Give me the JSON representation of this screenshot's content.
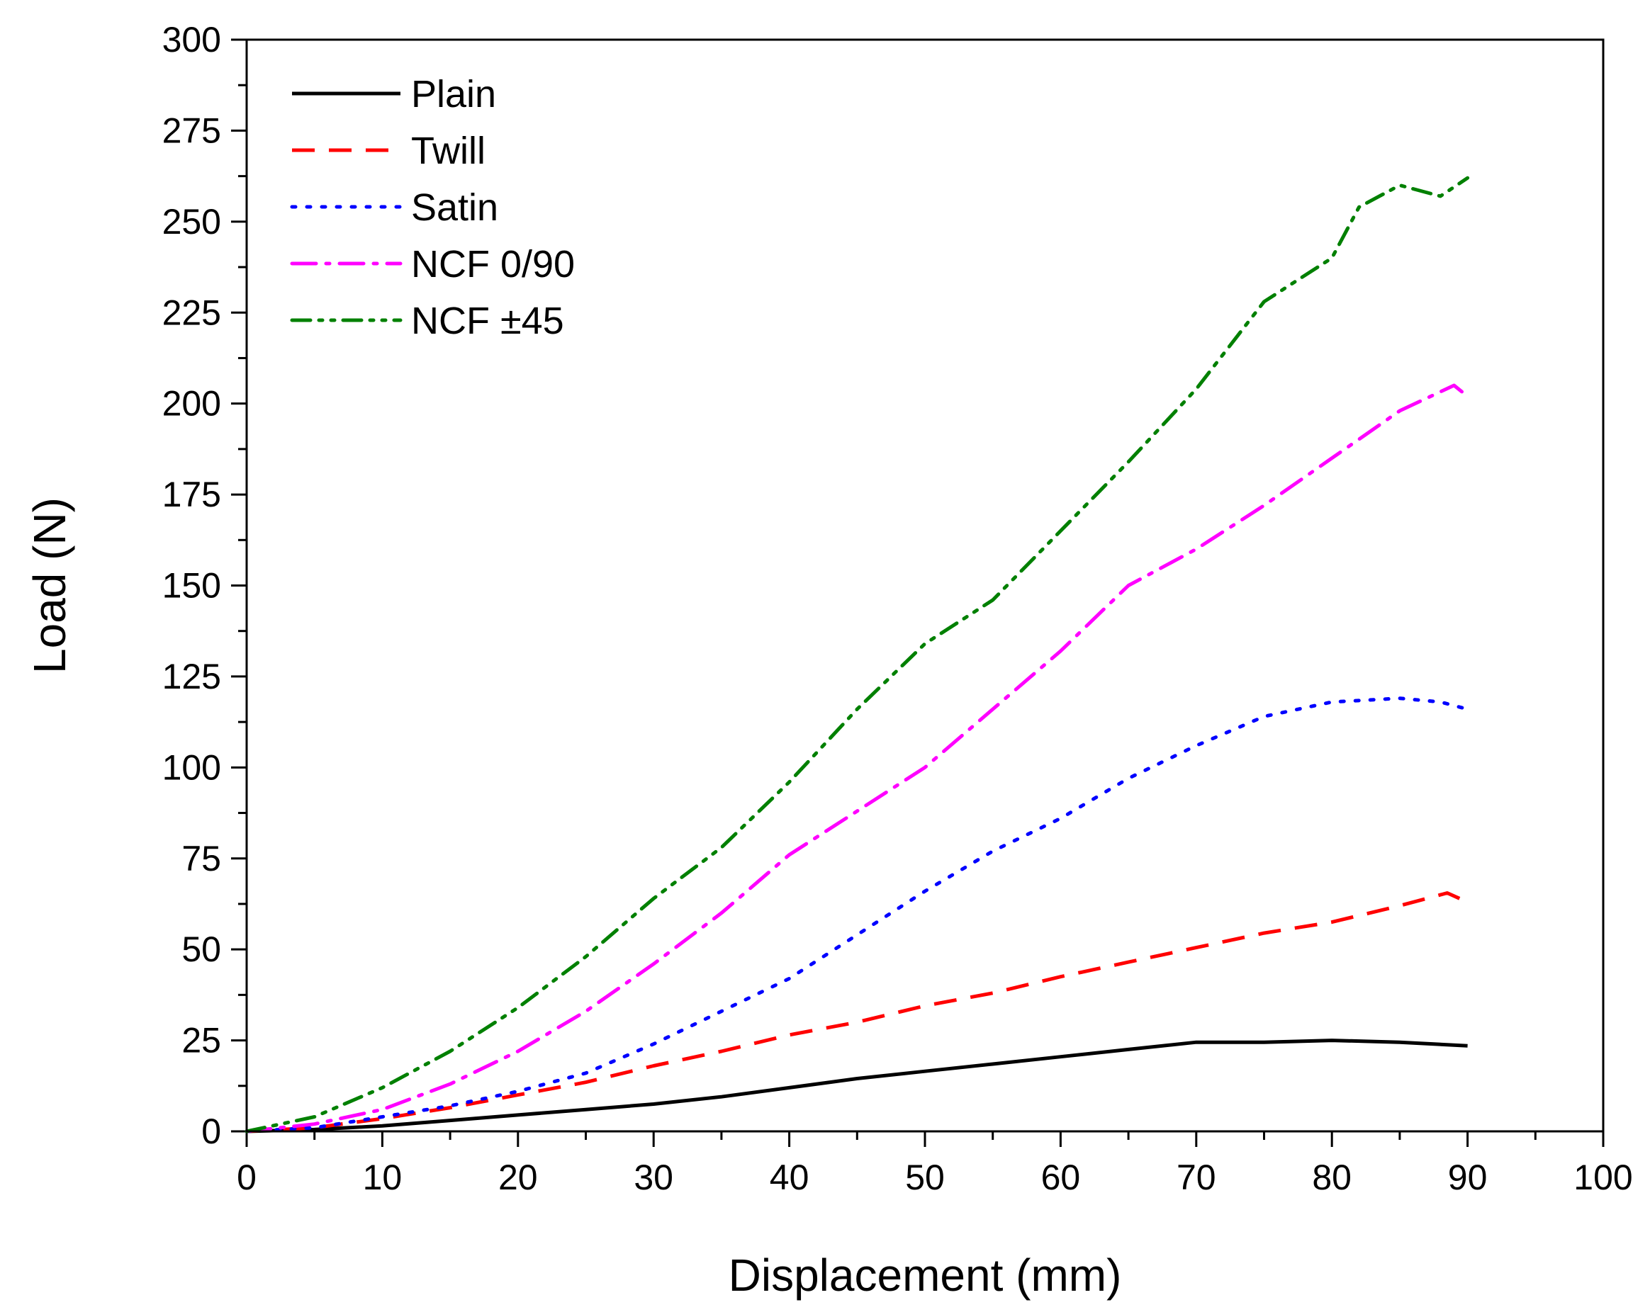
{
  "chart_data": {
    "type": "line",
    "title": "",
    "xlabel": "Displacement (mm)",
    "ylabel": "Load (N)",
    "xlim": [
      0,
      100
    ],
    "ylim": [
      0,
      300
    ],
    "xticks": [
      0,
      10,
      20,
      30,
      40,
      50,
      60,
      70,
      80,
      90,
      100
    ],
    "yticks": [
      0,
      25,
      50,
      75,
      100,
      125,
      150,
      175,
      200,
      225,
      250,
      275,
      300
    ],
    "grid": false,
    "legend_position": "top-left",
    "series": [
      {
        "name": "Plain",
        "color": "#000000",
        "dash": "solid",
        "x": [
          0,
          5,
          10,
          15,
          20,
          25,
          30,
          35,
          40,
          45,
          50,
          55,
          60,
          65,
          70,
          75,
          80,
          85,
          90
        ],
        "y": [
          0,
          0.5,
          1.5,
          3,
          4.5,
          6,
          7.5,
          9.5,
          12,
          14.5,
          16.5,
          18.5,
          20.5,
          22.5,
          24.5,
          24.5,
          25,
          24.5,
          23.5
        ]
      },
      {
        "name": "Twill",
        "color": "#ff0000",
        "dash": "dash",
        "x": [
          0,
          5,
          10,
          15,
          20,
          25,
          30,
          35,
          40,
          45,
          50,
          55,
          60,
          65,
          70,
          75,
          80,
          85,
          88.5,
          90
        ],
        "y": [
          0,
          1,
          3.5,
          6.5,
          10,
          13.5,
          18,
          22,
          26.5,
          30,
          34.5,
          38,
          42.5,
          46.5,
          50.5,
          54.5,
          57.5,
          62,
          65.5,
          63
        ]
      },
      {
        "name": "Satin",
        "color": "#0000ff",
        "dash": "dot",
        "x": [
          0,
          5,
          10,
          15,
          20,
          25,
          30,
          35,
          40,
          45,
          50,
          55,
          60,
          65,
          70,
          75,
          80,
          85,
          88,
          90
        ],
        "y": [
          0,
          1,
          4,
          7,
          11,
          16,
          24,
          33,
          42,
          54,
          66,
          77,
          86,
          97,
          106,
          114,
          118,
          119,
          118,
          116
        ]
      },
      {
        "name": "NCF 0/90",
        "color": "#ff00ff",
        "dash": "dashdot",
        "x": [
          0,
          5,
          10,
          15,
          20,
          25,
          30,
          35,
          40,
          45,
          50,
          55,
          60,
          65,
          70,
          75,
          80,
          85,
          89,
          90
        ],
        "y": [
          0,
          2,
          6,
          13,
          22,
          33,
          46,
          60,
          76,
          88,
          100,
          116,
          132,
          150,
          160,
          172,
          185,
          198,
          205,
          202
        ]
      },
      {
        "name": "NCF ±45",
        "color": "#008000",
        "dash": "dashdotdot",
        "x": [
          0,
          5,
          10,
          15,
          20,
          25,
          30,
          35,
          40,
          45,
          50,
          55,
          60,
          65,
          70,
          75,
          80,
          82,
          85,
          88,
          90
        ],
        "y": [
          0,
          4,
          12,
          22,
          34,
          48,
          64,
          78,
          96,
          116,
          134,
          146,
          165,
          184,
          204,
          228,
          240,
          254,
          260,
          257,
          262
        ]
      }
    ]
  }
}
